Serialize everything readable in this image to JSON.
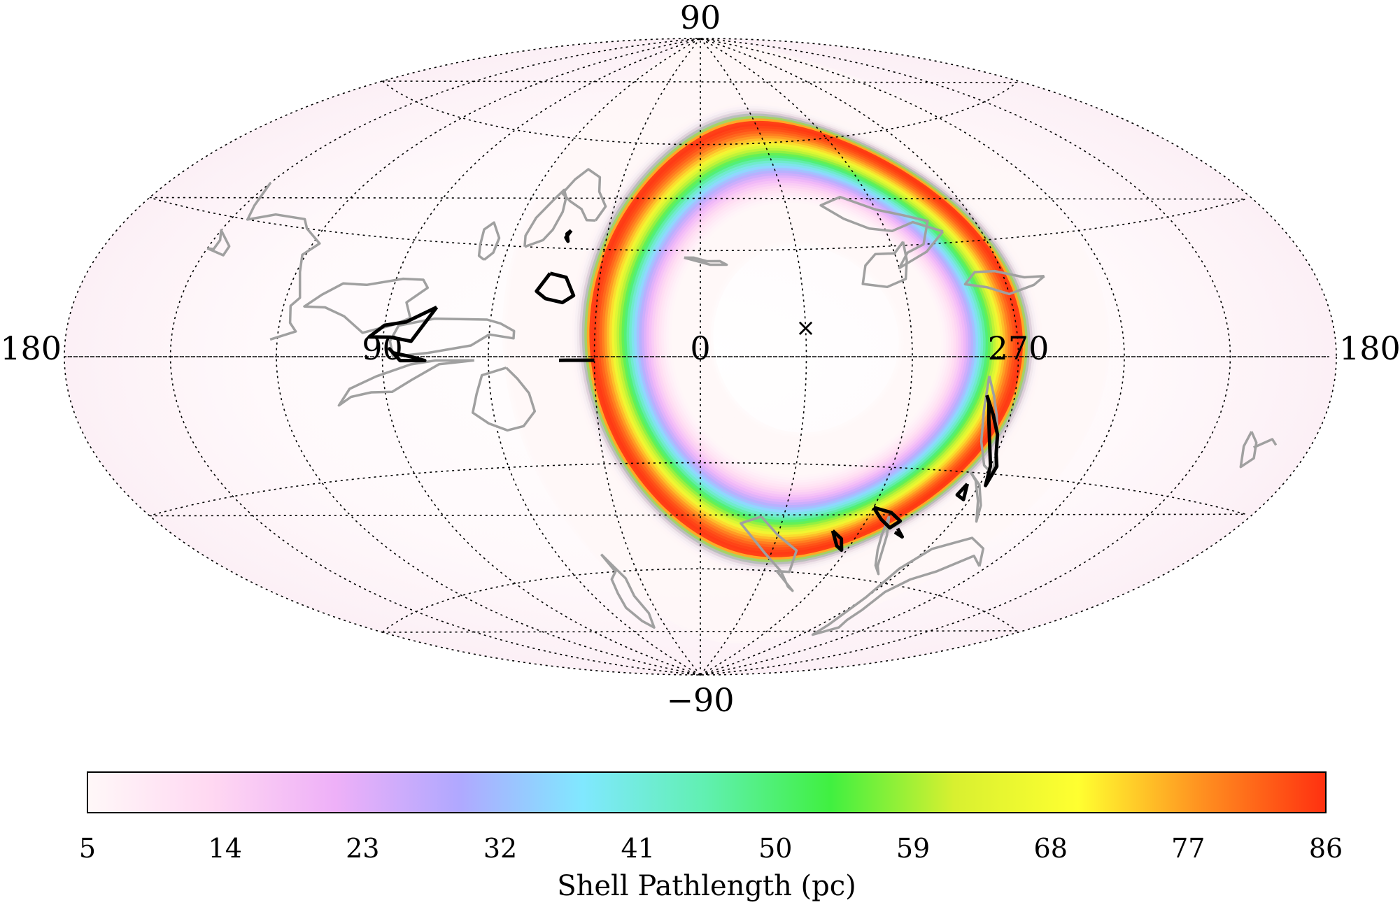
{
  "chart_data": {
    "type": "heatmap",
    "projection": "aitoff",
    "coordinates": "galactic",
    "lon_labels": [
      {
        "text": "180",
        "lon": 180,
        "side": "left"
      },
      {
        "text": "90",
        "lon": 90
      },
      {
        "text": "0",
        "lon": 0
      },
      {
        "text": "270",
        "lon": 270
      },
      {
        "text": "180",
        "lon": 180,
        "side": "right"
      }
    ],
    "lat_labels": [
      {
        "text": "90",
        "lat": 90
      },
      {
        "text": "−90",
        "lat": -90
      }
    ],
    "grid": true,
    "grid_lon_step": 30,
    "grid_lat_step": 30,
    "shell_ring": {
      "center_lon": 330,
      "center_lat": 5,
      "radius_deg": 62,
      "peak_pathlength_pc": 86,
      "background_pathlength_pc": 5
    },
    "marker": {
      "symbol": "×",
      "lon": 330,
      "lat": 8
    },
    "colorbar": {
      "min": 5,
      "max": 86,
      "ticks": [
        "5",
        "14",
        "23",
        "32",
        "41",
        "50",
        "59",
        "68",
        "77",
        "86"
      ],
      "label": "Shell Pathlength (pc)",
      "colors": [
        "#fff8f8",
        "#ffd8f2",
        "#eeb0f8",
        "#b0a8ff",
        "#80e8ff",
        "#60f0b0",
        "#40f040",
        "#d8f030",
        "#ffff30",
        "#ff9020",
        "#ff3010"
      ]
    },
    "grey_regions": [
      [
        [
          122,
          4
        ],
        [
          115,
          6
        ],
        [
          117,
          8
        ],
        [
          118,
          12
        ],
        [
          116,
          14
        ],
        [
          119,
          20
        ],
        [
          121,
          24
        ],
        [
          118,
          27
        ],
        [
          125,
          30
        ],
        [
          128,
          32
        ],
        [
          138,
          32
        ],
        [
          145,
          30
        ],
        [
          147,
          33
        ],
        [
          150,
          38
        ]
      ],
      [
        [
          150,
          23
        ],
        [
          144,
          22
        ],
        [
          144,
          24
        ],
        [
          150,
          27
        ],
        [
          148,
          25
        ],
        [
          148,
          23
        ],
        [
          150,
          23
        ]
      ],
      [
        [
          88,
          8
        ],
        [
          83,
          10
        ],
        [
          85,
          14
        ],
        [
          80,
          18
        ],
        [
          82,
          20
        ],
        [
          88,
          20
        ],
        [
          98,
          18
        ],
        [
          105,
          18
        ],
        [
          110,
          15
        ],
        [
          114,
          12
        ],
        [
          108,
          12
        ],
        [
          102,
          10
        ],
        [
          96,
          6
        ],
        [
          92,
          7
        ],
        [
          88,
          8
        ]
      ],
      [
        [
          60,
          6
        ],
        [
          65,
          3
        ],
        [
          77,
          1
        ],
        [
          87,
          0
        ],
        [
          88,
          4
        ],
        [
          86,
          8
        ],
        [
          81,
          9
        ],
        [
          76,
          10
        ],
        [
          69,
          10
        ],
        [
          61,
          10
        ],
        [
          57,
          9
        ],
        [
          53,
          7
        ],
        [
          53,
          5
        ],
        [
          60,
          6
        ]
      ],
      [
        [
          64,
          -1
        ],
        [
          75,
          -1
        ],
        [
          82,
          -2
        ],
        [
          92,
          -5
        ],
        [
          100,
          -8
        ],
        [
          104,
          -12
        ],
        [
          100,
          -10
        ],
        [
          94,
          -9
        ],
        [
          88,
          -9
        ],
        [
          82,
          -6
        ],
        [
          74,
          -2
        ],
        [
          64,
          -1
        ]
      ],
      [
        [
          55,
          -3
        ],
        [
          62,
          -5
        ],
        [
          64,
          -10
        ],
        [
          66,
          -15
        ],
        [
          62,
          -18
        ],
        [
          57,
          -20
        ],
        [
          52,
          -19
        ],
        [
          48,
          -15
        ],
        [
          49,
          -10
        ],
        [
          52,
          -6
        ],
        [
          55,
          -3
        ]
      ],
      [
        [
          66,
          26
        ],
        [
          64,
          28
        ],
        [
          64,
          32
        ],
        [
          68,
          36
        ],
        [
          70,
          34
        ],
        [
          69,
          30
        ],
        [
          68,
          27
        ],
        [
          66,
          26
        ]
      ],
      [
        [
          55,
          30
        ],
        [
          50,
          32
        ],
        [
          48,
          35
        ],
        [
          47,
          40
        ],
        [
          48,
          44
        ],
        [
          50,
          46
        ],
        [
          52,
          43
        ],
        [
          55,
          38
        ],
        [
          56,
          33
        ],
        [
          55,
          30
        ]
      ],
      [
        [
          35,
          38
        ],
        [
          33,
          42
        ],
        [
          37,
          46
        ],
        [
          39,
          50
        ],
        [
          45,
          52
        ],
        [
          48,
          49
        ],
        [
          50,
          45
        ],
        [
          46,
          43
        ],
        [
          41,
          41
        ],
        [
          38,
          38
        ],
        [
          35,
          38
        ]
      ],
      [
        [
          5,
          28
        ],
        [
          2,
          28
        ],
        [
          -2,
          27
        ],
        [
          -6,
          27
        ],
        [
          -8,
          26
        ],
        [
          -3,
          26
        ],
        [
          5,
          28
        ]
      ],
      [
        [
          282,
          33
        ],
        [
          290,
          28
        ],
        [
          300,
          24
        ],
        [
          296,
          28
        ],
        [
          290,
          30
        ],
        [
          285,
          36
        ],
        [
          292,
          38
        ],
        [
          300,
          40
        ],
        [
          310,
          44
        ],
        [
          318,
          42
        ],
        [
          312,
          38
        ],
        [
          305,
          35
        ],
        [
          298,
          34
        ],
        [
          290,
          36
        ],
        [
          282,
          33
        ]
      ],
      [
        [
          296,
          31
        ],
        [
          300,
          28
        ],
        [
          306,
          28
        ],
        [
          310,
          25
        ],
        [
          312,
          20
        ],
        [
          305,
          19
        ],
        [
          299,
          21
        ],
        [
          297,
          26
        ],
        [
          296,
          31
        ]
      ],
      [
        [
          258,
          20
        ],
        [
          262,
          18
        ],
        [
          270,
          16
        ],
        [
          276,
          18
        ],
        [
          282,
          19
        ],
        [
          278,
          22
        ],
        [
          272,
          22
        ],
        [
          264,
          20
        ],
        [
          258,
          20
        ]
      ],
      [
        [
          278,
          -5
        ],
        [
          276,
          -10
        ],
        [
          274,
          -15
        ],
        [
          272,
          -20
        ],
        [
          270,
          -25
        ],
        [
          268,
          -30
        ],
        [
          272,
          -28
        ],
        [
          276,
          -22
        ],
        [
          278,
          -14
        ],
        [
          278,
          -5
        ]
      ],
      [
        [
          275,
          -30
        ],
        [
          272,
          -32
        ],
        [
          267,
          -37
        ],
        [
          262,
          -42
        ],
        [
          265,
          -38
        ],
        [
          270,
          -33
        ],
        [
          275,
          -30
        ]
      ],
      [
        [
          338,
          -45
        ],
        [
          330,
          -50
        ],
        [
          320,
          -54
        ],
        [
          318,
          -60
        ],
        [
          324,
          -60
        ],
        [
          310,
          -65
        ],
        [
          314,
          -64
        ],
        [
          322,
          -60
        ],
        [
          333,
          -55
        ],
        [
          345,
          -47
        ],
        [
          338,
          -45
        ]
      ],
      [
        [
          293,
          -43
        ],
        [
          289,
          -48
        ],
        [
          286,
          -52
        ],
        [
          282,
          -56
        ],
        [
          278,
          -58
        ],
        [
          283,
          -56
        ],
        [
          288,
          -52
        ],
        [
          291,
          -48
        ],
        [
          293,
          -43
        ]
      ],
      [
        [
          243,
          -52
        ],
        [
          250,
          -50
        ],
        [
          256,
          -55
        ],
        [
          262,
          -58
        ],
        [
          265,
          -62
        ],
        [
          262,
          -67
        ],
        [
          260,
          -70
        ],
        [
          256,
          -72
        ],
        [
          262,
          -75
        ],
        [
          265,
          -72
        ],
        [
          270,
          -64
        ],
        [
          272,
          -56
        ],
        [
          268,
          -50
        ],
        [
          258,
          -46
        ],
        [
          250,
          -48
        ],
        [
          243,
          -52
        ]
      ],
      [
        [
          42,
          -55
        ],
        [
          40,
          -60
        ],
        [
          44,
          -62
        ],
        [
          46,
          -66
        ],
        [
          48,
          -70
        ],
        [
          45,
          -74
        ],
        [
          40,
          -76
        ],
        [
          36,
          -72
        ],
        [
          38,
          -67
        ],
        [
          37,
          -62
        ],
        [
          40,
          -58
        ],
        [
          42,
          -55
        ]
      ],
      [
        [
          199,
          -15
        ],
        [
          196,
          -17
        ],
        [
          194,
          -20
        ],
        [
          196,
          -22
        ],
        [
          199,
          -18
        ],
        [
          199,
          -15
        ]
      ],
      [
        [
          196,
          -18
        ],
        [
          192,
          -16
        ],
        [
          190,
          -17
        ]
      ]
    ],
    "black_regions": [
      [
        [
          76,
          13
        ],
        [
          84,
          9
        ],
        [
          90,
          8
        ],
        [
          94,
          5
        ],
        [
          88,
          5
        ],
        [
          82,
          4
        ],
        [
          76,
          13
        ]
      ],
      [
        [
          87,
          1
        ],
        [
          82,
          0
        ],
        [
          78,
          -1
        ],
        [
          85,
          -1
        ],
        [
          88,
          2
        ],
        [
          87,
          1
        ]
      ],
      [
        [
          45,
          23
        ],
        [
          40,
          22
        ],
        [
          37,
          17
        ],
        [
          40,
          15
        ],
        [
          45,
          16
        ],
        [
          48,
          18
        ],
        [
          45,
          23
        ]
      ],
      [
        [
          42,
          35
        ],
        [
          43,
          34
        ],
        [
          42,
          32
        ],
        [
          43,
          33
        ],
        [
          42,
          35
        ]
      ],
      [
        [
          278,
          -10
        ],
        [
          275,
          -15
        ],
        [
          272,
          -20
        ],
        [
          270,
          -25
        ],
        [
          268,
          -28
        ],
        [
          268,
          -33
        ],
        [
          270,
          -28
        ],
        [
          273,
          -23
        ],
        [
          276,
          -16
        ],
        [
          277,
          -12
        ],
        [
          278,
          -10
        ]
      ],
      [
        [
          300,
          -41
        ],
        [
          295,
          -44
        ],
        [
          290,
          -46
        ],
        [
          288,
          -44
        ],
        [
          293,
          -42
        ],
        [
          300,
          -41
        ]
      ],
      [
        [
          310,
          -48
        ],
        [
          305,
          -50
        ],
        [
          302,
          -53
        ],
        [
          305,
          -52
        ],
        [
          310,
          -48
        ]
      ],
      [
        [
          287,
          -46
        ],
        [
          283,
          -48
        ],
        [
          287,
          -47
        ]
      ],
      [
        [
          274,
          -33
        ],
        [
          272,
          -37
        ],
        [
          275,
          -36
        ],
        [
          274,
          -33
        ]
      ],
      [
        [
          30,
          -1
        ],
        [
          38,
          -1
        ],
        [
          40,
          -1
        ]
      ]
    ]
  }
}
